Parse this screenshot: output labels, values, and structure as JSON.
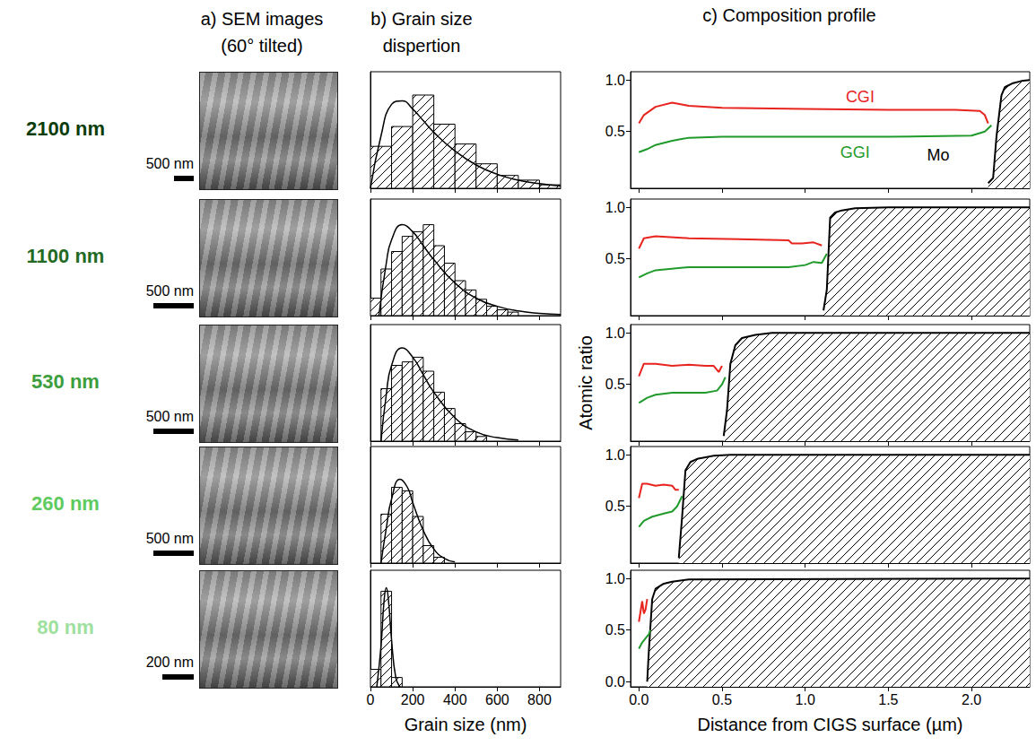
{
  "headers": [
    {
      "lines": [
        "a) SEM images",
        "(60° tilted)"
      ]
    },
    {
      "lines": [
        "b) Grain size",
        "dispertion"
      ]
    },
    {
      "lines": [
        "c) Composition profile"
      ]
    }
  ],
  "rows": [
    {
      "label": "2100 nm",
      "color": "#0b3d0b",
      "scale_bar": "500 nm"
    },
    {
      "label": "1100 nm",
      "color": "#236b23",
      "scale_bar": "500 nm"
    },
    {
      "label": "530 nm",
      "color": "#3c9e3c",
      "scale_bar": "500 nm"
    },
    {
      "label": "260 nm",
      "color": "#5fcb5f",
      "scale_bar": "500 nm"
    },
    {
      "label": "80 nm",
      "color": "#9ee09e",
      "scale_bar": "200 nm"
    }
  ],
  "chart_data": [
    {
      "type": "histogram",
      "color": "#000000",
      "bins": [
        0,
        100,
        200,
        300,
        400,
        500,
        600,
        700,
        800,
        900
      ],
      "values": [
        0.36,
        0.53,
        0.8,
        0.55,
        0.38,
        0.21,
        0.11,
        0.07,
        0.03
      ],
      "fit": {
        "x": [
          0,
          50,
          100,
          150,
          200,
          250,
          300,
          400,
          500,
          600,
          700,
          800,
          900
        ],
        "values": [
          0,
          0.45,
          0.72,
          0.75,
          0.68,
          0.58,
          0.48,
          0.32,
          0.2,
          0.12,
          0.07,
          0.04,
          0.02
        ]
      },
      "xlim": [
        0,
        900
      ],
      "xticks": [
        0,
        200,
        400,
        600,
        800
      ],
      "ylim": [
        0,
        1
      ],
      "tick_labels": false
    },
    {
      "type": "histogram",
      "color": "#000000",
      "bins": [
        0,
        50,
        100,
        150,
        200,
        250,
        300,
        350,
        400,
        450,
        500,
        550,
        600,
        650,
        700
      ],
      "values": [
        0.15,
        0.4,
        0.55,
        0.68,
        0.72,
        0.78,
        0.6,
        0.45,
        0.3,
        0.22,
        0.14,
        0.08,
        0.05,
        0.03
      ],
      "fit": {
        "x": [
          40,
          75,
          100,
          150,
          200,
          250,
          300,
          400,
          500,
          600,
          700,
          800,
          900
        ],
        "values": [
          0,
          0.45,
          0.65,
          0.78,
          0.72,
          0.6,
          0.48,
          0.28,
          0.15,
          0.08,
          0.04,
          0.02,
          0.01
        ]
      },
      "xlim": [
        0,
        900
      ],
      "xticks": [
        0,
        200,
        400,
        600,
        800
      ],
      "ylim": [
        0,
        1
      ],
      "tick_labels": false
    },
    {
      "type": "histogram",
      "color": "#000000",
      "bins": [
        50,
        100,
        150,
        200,
        250,
        300,
        350,
        400,
        450,
        500,
        550
      ],
      "values": [
        0.45,
        0.65,
        0.68,
        0.72,
        0.6,
        0.42,
        0.28,
        0.15,
        0.08,
        0.04
      ],
      "fit": {
        "x": [
          50,
          75,
          100,
          150,
          200,
          250,
          300,
          400,
          500,
          600,
          700
        ],
        "values": [
          0,
          0.4,
          0.65,
          0.8,
          0.72,
          0.57,
          0.42,
          0.2,
          0.08,
          0.03,
          0.01
        ]
      },
      "xlim": [
        0,
        900
      ],
      "xticks": [
        0,
        200,
        400,
        600,
        800
      ],
      "ylim": [
        0,
        1
      ],
      "tick_labels": false
    },
    {
      "type": "histogram",
      "color": "#000000",
      "bins": [
        50,
        100,
        150,
        200,
        250,
        300,
        350
      ],
      "values": [
        0.42,
        0.65,
        0.62,
        0.4,
        0.15,
        0.05
      ],
      "fit": {
        "x": [
          50,
          75,
          100,
          140,
          175,
          200,
          250,
          300,
          350,
          400
        ],
        "values": [
          0,
          0.3,
          0.55,
          0.72,
          0.65,
          0.52,
          0.28,
          0.12,
          0.04,
          0.01
        ]
      },
      "xlim": [
        0,
        900
      ],
      "xticks": [
        0,
        200,
        400,
        600,
        800
      ],
      "ylim": [
        0,
        1
      ],
      "tick_labels": false
    },
    {
      "type": "histogram",
      "color": "#000000",
      "bins": [
        0,
        50,
        100,
        150
      ],
      "values": [
        0.15,
        0.82,
        0.08
      ],
      "fit": {
        "x": [
          30,
          50,
          65,
          75,
          85,
          100,
          120,
          140
        ],
        "values": [
          0,
          0.35,
          0.75,
          0.85,
          0.75,
          0.4,
          0.08,
          0
        ]
      },
      "xlim": [
        0,
        900
      ],
      "xticks": [
        0,
        200,
        400,
        600,
        800
      ],
      "ylim": [
        0,
        1
      ],
      "tick_labels": "x",
      "xlabel": "Grain size (nm)"
    },
    {
      "type": "line",
      "xlim": [
        -0.05,
        2.35
      ],
      "xticks": [
        {
          "value": 0,
          "label": "0.0"
        },
        0.5,
        {
          "value": 1,
          "label": "1.0"
        },
        1.5,
        {
          "value": 2,
          "label": "2.0"
        }
      ],
      "ylim": [
        -0.05,
        1.08
      ],
      "yticks": [
        0.5,
        {
          "value": 1,
          "label": "1.0"
        }
      ],
      "tick_labels": "y",
      "series": [
        {
          "name": "Mo",
          "type": "area",
          "color": "#000000",
          "x": [
            2.1,
            2.13,
            2.15,
            2.18,
            2.2,
            2.25,
            2.3,
            2.35
          ],
          "values": [
            0,
            0.05,
            0.45,
            0.85,
            0.93,
            0.97,
            0.99,
            1.0
          ]
        },
        {
          "name": "CGI",
          "type": "line",
          "color": "#e8241f",
          "x": [
            0,
            0.03,
            0.1,
            0.2,
            0.3,
            0.5,
            1.0,
            1.5,
            1.9,
            2.05,
            2.08,
            2.1
          ],
          "values": [
            0.58,
            0.66,
            0.74,
            0.78,
            0.75,
            0.73,
            0.72,
            0.71,
            0.71,
            0.7,
            0.66,
            0.58
          ]
        },
        {
          "name": "GGI",
          "type": "line",
          "color": "#1f9a2b",
          "x": [
            0,
            0.05,
            0.1,
            0.2,
            0.3,
            0.5,
            1.0,
            1.5,
            2.0,
            2.08,
            2.12
          ],
          "values": [
            0.3,
            0.33,
            0.37,
            0.41,
            0.44,
            0.45,
            0.45,
            0.45,
            0.46,
            0.5,
            0.56
          ]
        }
      ],
      "annotations": [
        {
          "text": "CGI",
          "x": 1.33,
          "y": 0.84
        },
        {
          "text": "GGI",
          "x": 1.3,
          "y": 0.3
        },
        {
          "text": "Mo",
          "x": 1.8,
          "y": 0.27
        }
      ]
    },
    {
      "type": "line",
      "xlim": [
        -0.05,
        2.35
      ],
      "xticks": [
        {
          "value": 0,
          "label": "0.0"
        },
        0.5,
        {
          "value": 1,
          "label": "1.0"
        },
        1.5,
        {
          "value": 2,
          "label": "2.0"
        }
      ],
      "ylim": [
        -0.05,
        1.08
      ],
      "yticks": [
        0.5,
        {
          "value": 1,
          "label": "1.0"
        }
      ],
      "tick_labels": "y",
      "series": [
        {
          "name": "Mo",
          "type": "area",
          "color": "#000000",
          "x": [
            1.11,
            1.13,
            1.15,
            1.18,
            1.22,
            1.3,
            1.5,
            2.35
          ],
          "values": [
            0,
            0.2,
            0.9,
            0.95,
            0.97,
            0.99,
            1.0,
            1.0
          ]
        },
        {
          "name": "CGI",
          "type": "line",
          "color": "#e8241f",
          "x": [
            0,
            0.03,
            0.1,
            0.3,
            0.6,
            0.9,
            0.92,
            0.98,
            1.05,
            1.1
          ],
          "values": [
            0.6,
            0.7,
            0.72,
            0.7,
            0.69,
            0.68,
            0.65,
            0.65,
            0.66,
            0.63
          ]
        },
        {
          "name": "GGI",
          "type": "line",
          "color": "#1f9a2b",
          "x": [
            0,
            0.05,
            0.1,
            0.3,
            0.6,
            0.9,
            1.0,
            1.05,
            1.1,
            1.13
          ],
          "values": [
            0.32,
            0.36,
            0.39,
            0.42,
            0.42,
            0.42,
            0.44,
            0.47,
            0.46,
            0.55
          ]
        }
      ]
    },
    {
      "type": "line",
      "xlim": [
        -0.05,
        2.35
      ],
      "xticks": [
        {
          "value": 0,
          "label": "0.0"
        },
        0.5,
        {
          "value": 1,
          "label": "1.0"
        },
        1.5,
        {
          "value": 2,
          "label": "2.0"
        }
      ],
      "ylim": [
        -0.05,
        1.08
      ],
      "yticks": [
        0.5,
        {
          "value": 1,
          "label": "1.0"
        }
      ],
      "tick_labels": "y",
      "ylabel": "Atomic ratio",
      "series": [
        {
          "name": "Mo",
          "type": "area",
          "color": "#000000",
          "x": [
            0.51,
            0.53,
            0.55,
            0.58,
            0.62,
            0.7,
            0.8,
            2.35
          ],
          "values": [
            0,
            0.25,
            0.7,
            0.88,
            0.95,
            0.98,
            1.0,
            1.0
          ]
        },
        {
          "name": "CGI",
          "type": "line",
          "color": "#e8241f",
          "x": [
            0,
            0.03,
            0.1,
            0.2,
            0.3,
            0.4,
            0.45,
            0.48,
            0.5
          ],
          "values": [
            0.58,
            0.7,
            0.7,
            0.68,
            0.69,
            0.68,
            0.68,
            0.62,
            0.68
          ]
        },
        {
          "name": "GGI",
          "type": "line",
          "color": "#1f9a2b",
          "x": [
            0,
            0.05,
            0.1,
            0.2,
            0.3,
            0.4,
            0.47,
            0.5,
            0.52
          ],
          "values": [
            0.32,
            0.37,
            0.4,
            0.42,
            0.42,
            0.42,
            0.44,
            0.5,
            0.57
          ]
        }
      ]
    },
    {
      "type": "line",
      "xlim": [
        -0.05,
        2.35
      ],
      "xticks": [
        {
          "value": 0,
          "label": "0.0"
        },
        0.5,
        {
          "value": 1,
          "label": "1.0"
        },
        1.5,
        {
          "value": 2,
          "label": "2.0"
        }
      ],
      "ylim": [
        -0.05,
        1.08
      ],
      "yticks": [
        0.5,
        {
          "value": 1,
          "label": "1.0"
        }
      ],
      "tick_labels": "y",
      "series": [
        {
          "name": "Mo",
          "type": "area",
          "color": "#000000",
          "x": [
            0.24,
            0.26,
            0.28,
            0.31,
            0.35,
            0.45,
            0.55,
            2.35
          ],
          "values": [
            0,
            0.4,
            0.85,
            0.93,
            0.96,
            0.99,
            1.0,
            1.0
          ]
        },
        {
          "name": "CGI",
          "type": "line",
          "color": "#e8241f",
          "x": [
            0,
            0.02,
            0.05,
            0.1,
            0.15,
            0.2,
            0.22,
            0.24
          ],
          "values": [
            0.58,
            0.72,
            0.72,
            0.7,
            0.71,
            0.7,
            0.66,
            0.66
          ]
        },
        {
          "name": "GGI",
          "type": "line",
          "color": "#1f9a2b",
          "x": [
            0,
            0.03,
            0.08,
            0.15,
            0.2,
            0.23,
            0.26
          ],
          "values": [
            0.3,
            0.36,
            0.4,
            0.43,
            0.45,
            0.5,
            0.6
          ]
        }
      ]
    },
    {
      "type": "line",
      "xlim": [
        -0.05,
        2.35
      ],
      "xticks": [
        {
          "value": 0,
          "label": "0.0"
        },
        0.5,
        {
          "value": 1,
          "label": "1.0"
        },
        1.5,
        {
          "value": 2,
          "label": "2.0"
        }
      ],
      "ylim": [
        -0.05,
        1.08
      ],
      "yticks": [
        {
          "value": 0,
          "label": "0.0"
        },
        0.5,
        {
          "value": 1,
          "label": "1.0"
        }
      ],
      "tick_labels": true,
      "xlabel": "Distance from CIGS surface (µm)",
      "series": [
        {
          "name": "Mo",
          "type": "area",
          "color": "#000000",
          "x": [
            0.05,
            0.06,
            0.08,
            0.1,
            0.15,
            0.2,
            0.3,
            2.35
          ],
          "values": [
            0,
            0.3,
            0.8,
            0.9,
            0.95,
            0.97,
            0.99,
            1.0
          ]
        },
        {
          "name": "CGI",
          "type": "line",
          "color": "#e8241f",
          "x": [
            0,
            0.01,
            0.02,
            0.03,
            0.04,
            0.05
          ],
          "values": [
            0.58,
            0.68,
            0.78,
            0.66,
            0.7,
            0.8
          ]
        },
        {
          "name": "GGI",
          "type": "line",
          "color": "#1f9a2b",
          "x": [
            0,
            0.02,
            0.04,
            0.06,
            0.07
          ],
          "values": [
            0.32,
            0.38,
            0.42,
            0.46,
            0.5
          ]
        }
      ]
    }
  ]
}
